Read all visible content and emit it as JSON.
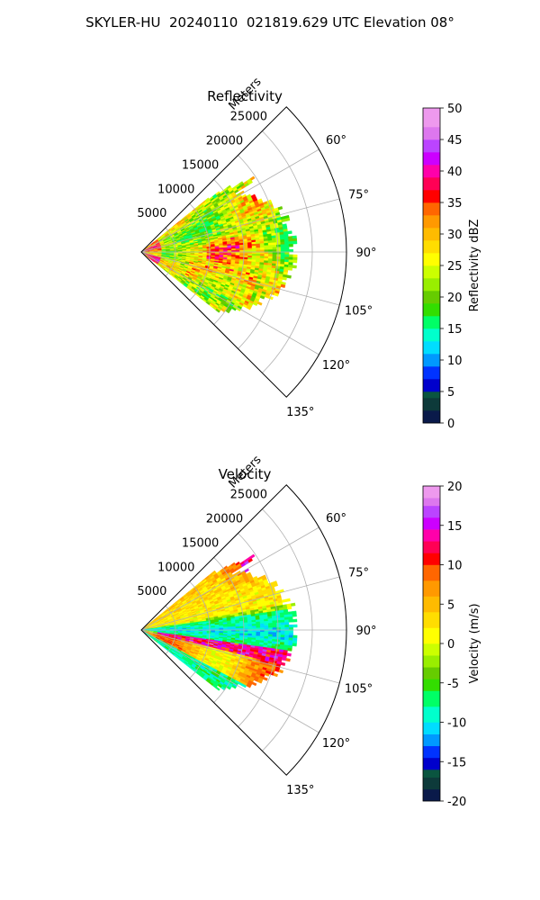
{
  "suptitle": "SKYLER-HU  20240110  021819.629 UTC Elevation 08°",
  "chart_data": [
    {
      "type": "heatmap",
      "projection": "polar-sector",
      "title": "Reflectivity",
      "radial_axis_label": "Meters",
      "radial_ticks": [
        5000,
        10000,
        15000,
        20000,
        25000
      ],
      "radial_tick_labels": [
        "5000",
        "10000",
        "15000",
        "20000",
        "25000"
      ],
      "rlim": [
        0,
        30000
      ],
      "azimuth_range_deg": [
        45,
        135
      ],
      "azimuth_ticks_deg": [
        60,
        75,
        90,
        105,
        120,
        135
      ],
      "azimuth_tick_labels": [
        "60°",
        "75°",
        "90°",
        "105°",
        "120°",
        "135°"
      ],
      "grid": true,
      "data_extent": {
        "azimuth_deg": [
          51,
          128
        ],
        "max_range_m": 22000
      },
      "colorbar": {
        "label": "Reflectivity dBZ",
        "range": [
          0,
          50
        ],
        "ticks": [
          0,
          5,
          10,
          15,
          20,
          25,
          30,
          35,
          40,
          45,
          50
        ],
        "tick_labels": [
          "0",
          "5",
          "10",
          "15",
          "20",
          "25",
          "30",
          "35",
          "40",
          "45",
          "50"
        ],
        "colormap_stops": [
          {
            "value": 0,
            "color": "#0a1a4a"
          },
          {
            "value": 2,
            "color": "#0d3a3a"
          },
          {
            "value": 4,
            "color": "#0a5540"
          },
          {
            "value": 5,
            "color": "#0000cc"
          },
          {
            "value": 7,
            "color": "#0033ff"
          },
          {
            "value": 9,
            "color": "#0099ff"
          },
          {
            "value": 11,
            "color": "#00ddff"
          },
          {
            "value": 13,
            "color": "#00ffcc"
          },
          {
            "value": 15,
            "color": "#00ff66"
          },
          {
            "value": 17,
            "color": "#33dd00"
          },
          {
            "value": 19,
            "color": "#66cc00"
          },
          {
            "value": 21,
            "color": "#99ee00"
          },
          {
            "value": 23,
            "color": "#ccff00"
          },
          {
            "value": 25,
            "color": "#ffff00"
          },
          {
            "value": 27,
            "color": "#ffdd00"
          },
          {
            "value": 29,
            "color": "#ffbb00"
          },
          {
            "value": 31,
            "color": "#ff9900"
          },
          {
            "value": 33,
            "color": "#ff6600"
          },
          {
            "value": 35,
            "color": "#ff0000"
          },
          {
            "value": 37,
            "color": "#ff0055"
          },
          {
            "value": 39,
            "color": "#ff00aa"
          },
          {
            "value": 41,
            "color": "#cc00ff"
          },
          {
            "value": 43,
            "color": "#bb44ff"
          },
          {
            "value": 45,
            "color": "#dd77ee"
          },
          {
            "value": 47,
            "color": "#ee99ee"
          },
          {
            "value": 50,
            "color": "#ffe8ff"
          }
        ]
      }
    },
    {
      "type": "heatmap",
      "projection": "polar-sector",
      "title": "Velocity",
      "radial_axis_label": "Meters",
      "radial_ticks": [
        5000,
        10000,
        15000,
        20000,
        25000
      ],
      "radial_tick_labels": [
        "5000",
        "10000",
        "15000",
        "20000",
        "25000"
      ],
      "rlim": [
        0,
        30000
      ],
      "azimuth_range_deg": [
        45,
        135
      ],
      "azimuth_ticks_deg": [
        60,
        75,
        90,
        105,
        120,
        135
      ],
      "azimuth_tick_labels": [
        "60°",
        "75°",
        "90°",
        "105°",
        "120°",
        "135°"
      ],
      "grid": true,
      "data_extent": {
        "azimuth_deg": [
          51,
          128
        ],
        "max_range_m": 22000
      },
      "colorbar": {
        "label": "Velocity (m/s)",
        "range": [
          -20,
          20
        ],
        "ticks": [
          -20,
          -15,
          -10,
          -5,
          0,
          5,
          10,
          15,
          20
        ],
        "tick_labels": [
          "-20",
          "-15",
          "-10",
          "-5",
          "0",
          "5",
          "10",
          "15",
          "20"
        ],
        "colormap_stops": [
          {
            "value": -20,
            "color": "#0a1a4a"
          },
          {
            "value": -18.5,
            "color": "#0d3a3a"
          },
          {
            "value": -17,
            "color": "#0a5540"
          },
          {
            "value": -16,
            "color": "#0000cc"
          },
          {
            "value": -14.5,
            "color": "#0033ff"
          },
          {
            "value": -13,
            "color": "#0099ff"
          },
          {
            "value": -11.5,
            "color": "#00ddff"
          },
          {
            "value": -10,
            "color": "#00ffcc"
          },
          {
            "value": -8,
            "color": "#00ff66"
          },
          {
            "value": -6,
            "color": "#33dd00"
          },
          {
            "value": -4.5,
            "color": "#66cc00"
          },
          {
            "value": -3,
            "color": "#99ee00"
          },
          {
            "value": -1.5,
            "color": "#ccff00"
          },
          {
            "value": 0,
            "color": "#ffff00"
          },
          {
            "value": 2,
            "color": "#ffdd00"
          },
          {
            "value": 4,
            "color": "#ffbb00"
          },
          {
            "value": 6,
            "color": "#ff9900"
          },
          {
            "value": 8,
            "color": "#ff6600"
          },
          {
            "value": 10,
            "color": "#ff0000"
          },
          {
            "value": 11.5,
            "color": "#ff0055"
          },
          {
            "value": 13,
            "color": "#ff00aa"
          },
          {
            "value": 14.5,
            "color": "#cc00ff"
          },
          {
            "value": 16,
            "color": "#bb44ff"
          },
          {
            "value": 17.5,
            "color": "#dd77ee"
          },
          {
            "value": 18.5,
            "color": "#ee99ee"
          },
          {
            "value": 20,
            "color": "#ffe8ff"
          }
        ]
      }
    }
  ]
}
